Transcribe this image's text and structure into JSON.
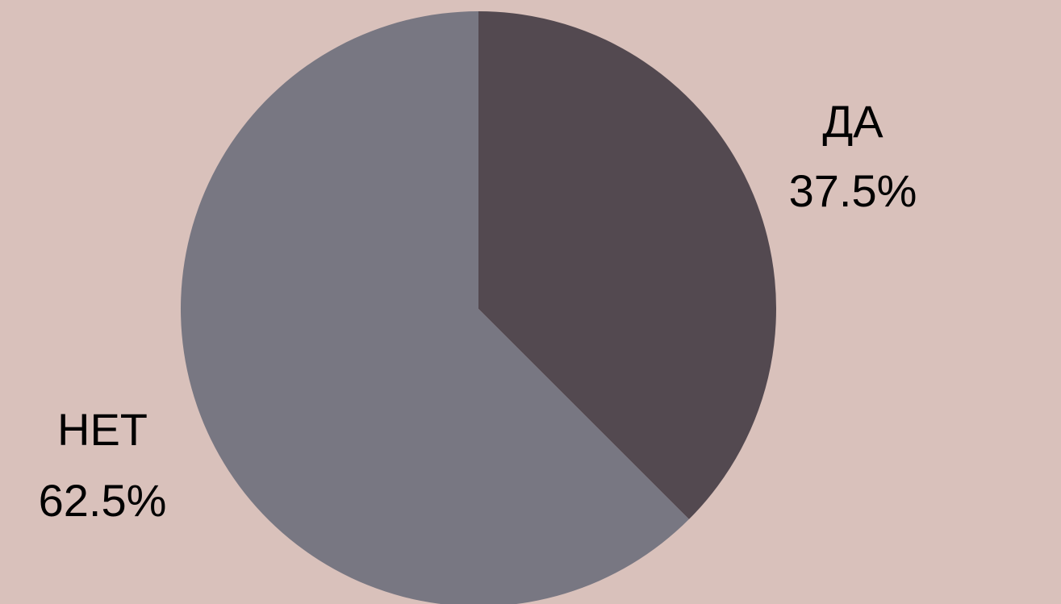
{
  "chart_data": {
    "type": "pie",
    "title": "",
    "slices": [
      {
        "label": "ДА",
        "value": 37.5,
        "percent_label": "37.5%",
        "color": "#534950"
      },
      {
        "label": "НЕТ",
        "value": 62.5,
        "percent_label": "62.5%",
        "color": "#787782"
      }
    ],
    "start_angle": "12 o'clock",
    "direction": "clockwise",
    "legend": "none",
    "background_color": "#d9c1bb"
  }
}
